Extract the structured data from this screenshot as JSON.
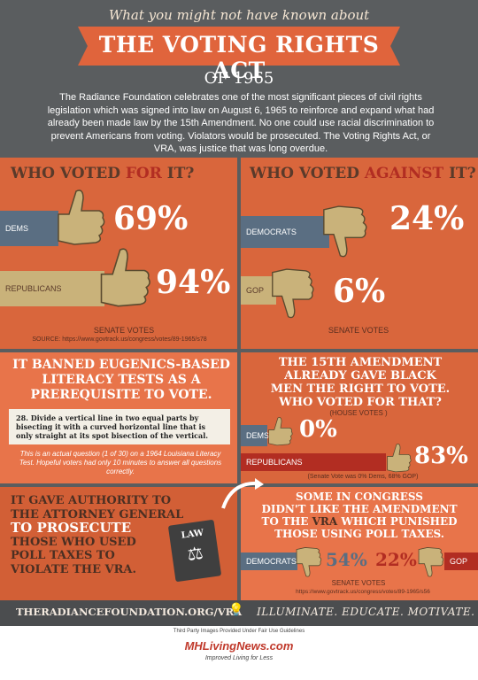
{
  "header": {
    "kicker": "What you might not have known about",
    "title": "THE VOTING RIGHTS ACT",
    "year": "OF 1965",
    "intro": "The Radiance Foundation celebrates one of the most significant pieces of civil rights legislation which was signed into law on August 6, 1965 to reinforce and expand what had already been made law by the 15th Amendment. No one could use racial discrimination to prevent Americans from voting. Violators would be prosecuted. The Voting Rights Act, or VRA, was justice that was long overdue."
  },
  "voted_for": {
    "title_a": "WHO VOTED ",
    "title_b": "FOR",
    "title_c": " IT?",
    "dems_label": "DEMS",
    "dems_pct": "69%",
    "reps_label": "REPUBLICANS",
    "reps_pct": "94%",
    "senate": "SENATE VOTES",
    "source": "SOURCE: https://www.govtrack.us/congress/votes/89-1965/s78"
  },
  "voted_against": {
    "title_a": "WHO VOTED ",
    "title_b": "AGAINST",
    "title_c": " IT?",
    "dems_label": "DEMOCRATS",
    "dems_pct": "24%",
    "gop_label": "GOP",
    "gop_pct": "6%",
    "senate": "SENATE VOTES"
  },
  "eugenics": {
    "line1": "IT BANNED EUGENICS-BASED",
    "line2": "LITERACY TESTS AS A",
    "line3": "PREREQUISITE TO VOTE.",
    "question": "28.  Divide a vertical line in two equal parts by bisecting it with a curved horizontal line that is only straight at its spot bisection of the vertical.",
    "note": "This is an actual question (1 of 30) on a 1964 Louisiana Literacy Test. Hopeful voters had only 10 minutes to answer all questions correctly."
  },
  "amendment": {
    "line1": "THE 15TH AMENDMENT",
    "line2": "ALREADY GAVE BLACK",
    "line3": "MEN THE RIGHT TO VOTE.",
    "line4": "WHO VOTED FOR THAT?",
    "house": "(HOUSE VOTES )",
    "dems_label": "DEMS",
    "dems_pct": "0%",
    "reps_label": "REPUBLICANS",
    "reps_pct": "83%",
    "senate_note": "(Senate Vote was 0% Dems, 68% GOP)"
  },
  "prosecute": {
    "line1": "IT GAVE AUTHORITY TO",
    "line2": "THE ATTORNEY GENERAL",
    "line3": "TO PROSECUTE",
    "line4": "THOSE WHO USED",
    "line5": "POLL TAXES TO",
    "line6": "VIOLATE THE VRA.",
    "book_label": "LAW"
  },
  "poll_tax": {
    "line1": "SOME IN CONGRESS",
    "line2": "DIDN'T LIKE THE AMENDMENT",
    "line3a": "TO THE ",
    "line3b": "VRA",
    "line3c": " WHICH PUNISHED",
    "line4": "THOSE USING POLL TAXES.",
    "dems_label": "DEMOCRATS",
    "dems_pct": "54%",
    "gop_pct": "22%",
    "gop_label": "GOP",
    "senate": "SENATE VOTES",
    "source": "https://www.govtrack.us/congress/votes/89-1965/s56"
  },
  "footer": {
    "left": "THERADIANCEFOUNDATION.ORG/VRA",
    "right": "ILLUMINATE. EDUCATE. MOTIVATE."
  },
  "credits": {
    "line": "Third Party Images Provided Under Fair Use Guidelines",
    "brand": "MHLivingNews.com",
    "tagline": "Improved Living for Less"
  },
  "colors": {
    "background": "#5a5d5f",
    "orange": "#d9663c",
    "light_orange": "#e8744a",
    "dark_red": "#b22d22",
    "slate": "#5a6e82",
    "olive": "#c9b27a",
    "dark_text": "#5a3a2a"
  }
}
